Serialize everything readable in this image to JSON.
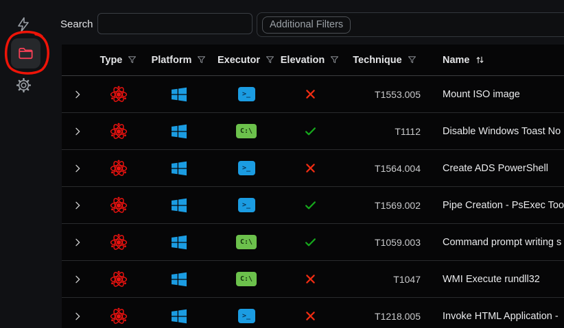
{
  "colors": {
    "page_bg": "#101114",
    "table_bg": "#060607",
    "atom_red": "#e8120f",
    "annotation_red": "#ee1408",
    "folder_pink": "#f43f55",
    "windows_blue": "#1b9ce2",
    "powershell_blue": "#1b9ce2",
    "cmd_green": "#6cc14c",
    "check_green": "#16a81c",
    "x_red": "#f02c12"
  },
  "sidebar": {
    "items": [
      {
        "icon": "lightning-icon"
      },
      {
        "icon": "folder-icon",
        "active": true,
        "annotated": true
      },
      {
        "icon": "gear-icon"
      }
    ]
  },
  "toolbar": {
    "search_label": "Search",
    "search_value": "",
    "additional_filters_label": "Additional Filters"
  },
  "table": {
    "columns": [
      {
        "label": "Type",
        "icon": "filter-icon"
      },
      {
        "label": "Platform",
        "icon": "filter-icon"
      },
      {
        "label": "Executor",
        "icon": "filter-icon"
      },
      {
        "label": "Elevation",
        "icon": "filter-icon"
      },
      {
        "label": "Technique",
        "icon": "filter-icon"
      },
      {
        "label": "Name",
        "icon": "sort-icon"
      }
    ],
    "executor_labels": {
      "powershell": ">_",
      "command-prompt": "C:\\"
    },
    "rows": [
      {
        "type": "atomic-test",
        "platform": "windows",
        "executor": "powershell",
        "elevation": false,
        "technique": "T1553.005",
        "name": "Mount ISO image"
      },
      {
        "type": "atomic-test",
        "platform": "windows",
        "executor": "command-prompt",
        "elevation": true,
        "technique": "T1112",
        "name": "Disable Windows Toast No"
      },
      {
        "type": "atomic-test",
        "platform": "windows",
        "executor": "powershell",
        "elevation": false,
        "technique": "T1564.004",
        "name": "Create ADS PowerShell"
      },
      {
        "type": "atomic-test",
        "platform": "windows",
        "executor": "powershell",
        "elevation": true,
        "technique": "T1569.002",
        "name": "Pipe Creation - PsExec Too"
      },
      {
        "type": "atomic-test",
        "platform": "windows",
        "executor": "command-prompt",
        "elevation": true,
        "technique": "T1059.003",
        "name": "Command prompt writing s"
      },
      {
        "type": "atomic-test",
        "platform": "windows",
        "executor": "command-prompt",
        "elevation": false,
        "technique": "T1047",
        "name": "WMI Execute rundll32"
      },
      {
        "type": "atomic-test",
        "platform": "windows",
        "executor": "powershell",
        "elevation": false,
        "technique": "T1218.005",
        "name": "Invoke HTML Application -"
      }
    ]
  }
}
